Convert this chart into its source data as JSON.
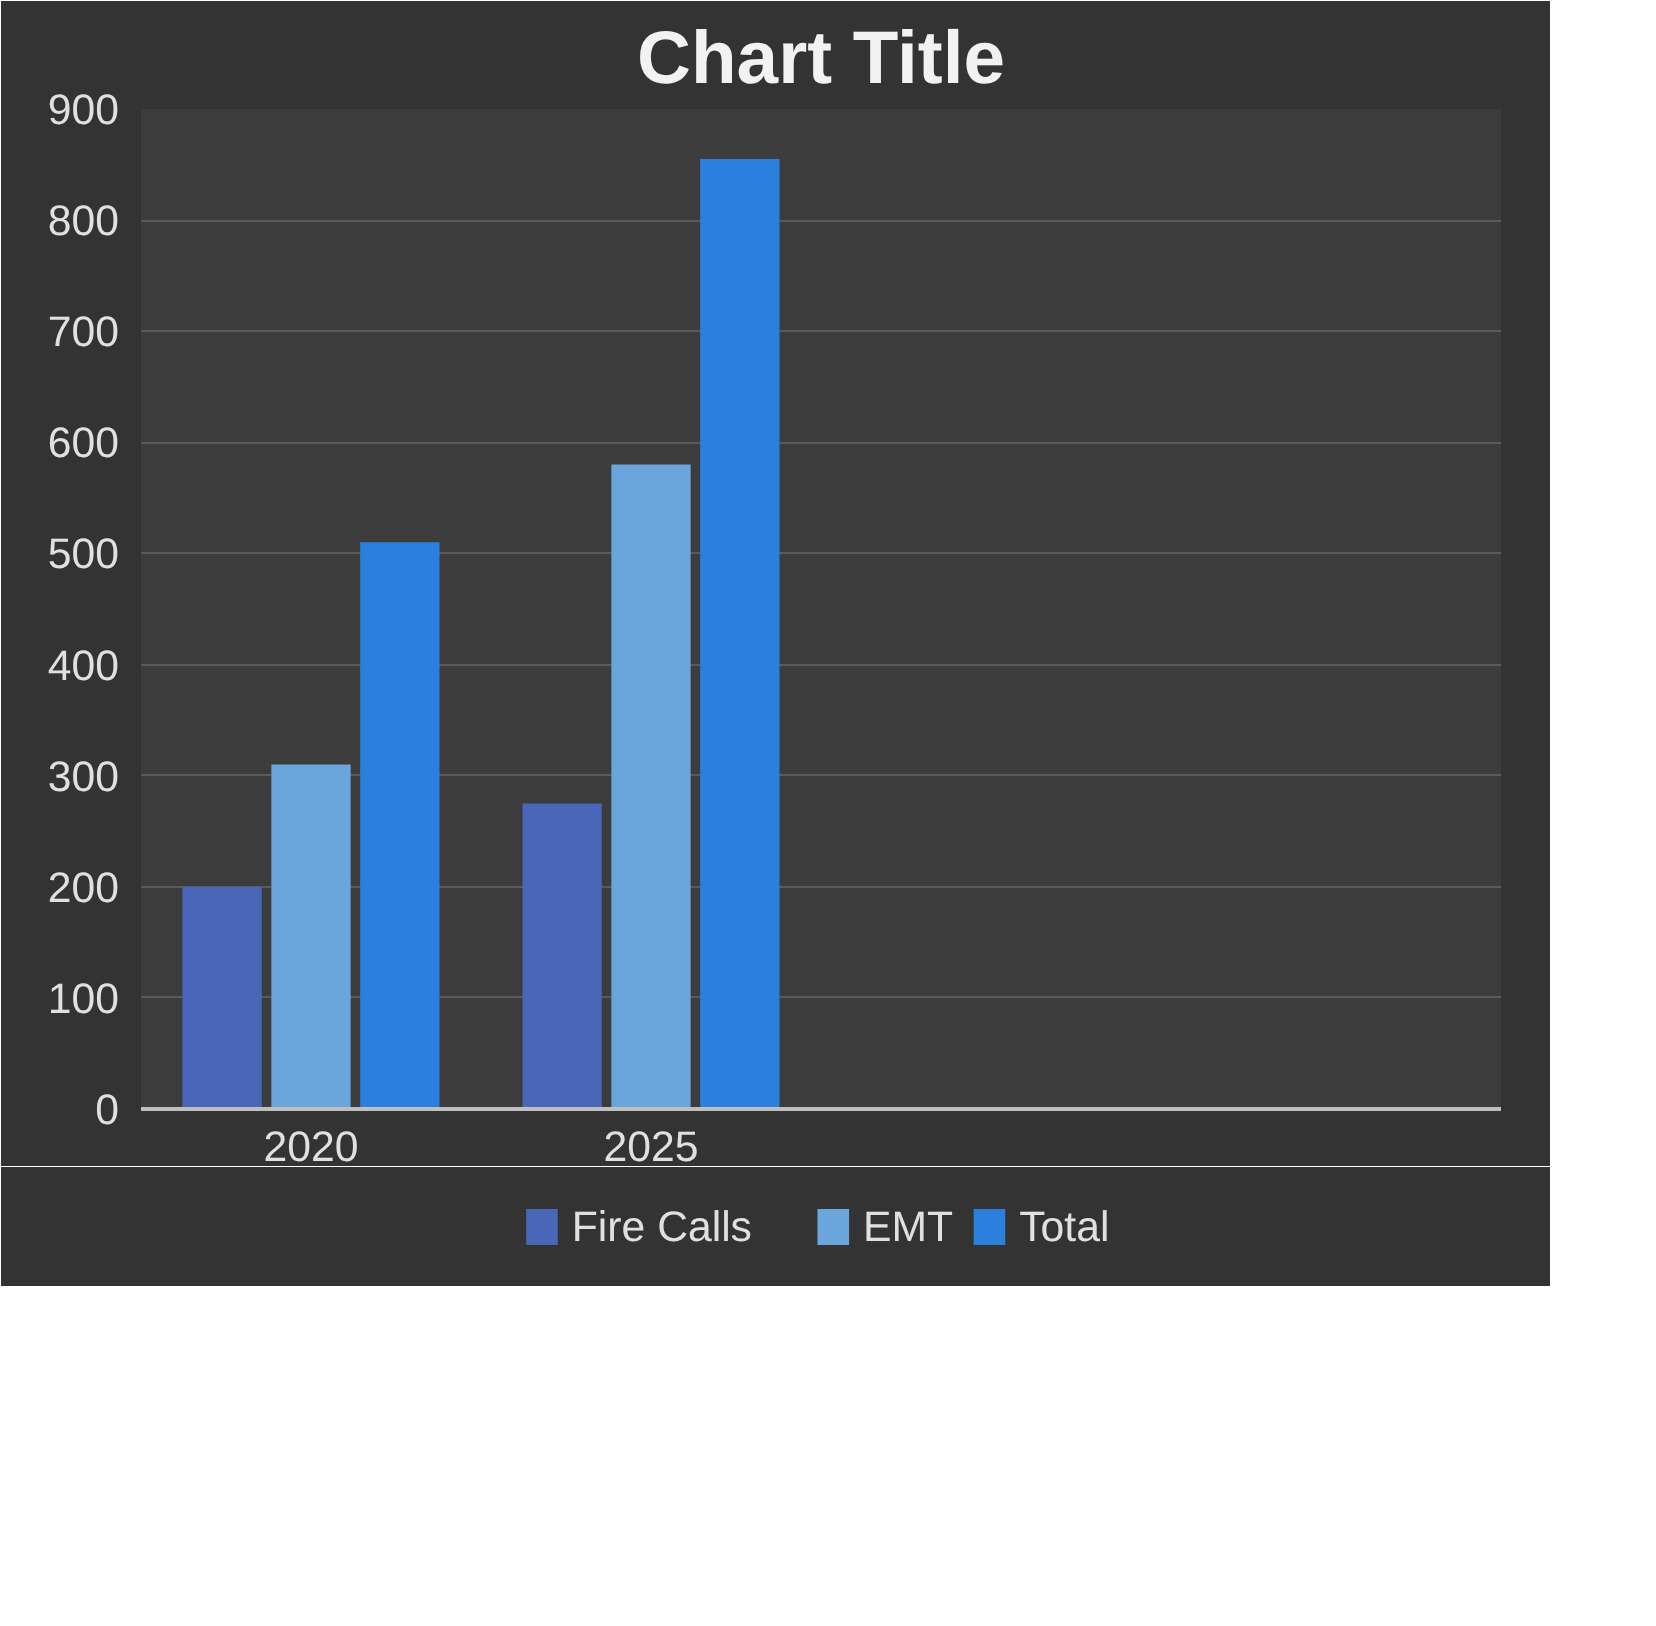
{
  "chart_data": {
    "type": "bar",
    "title": "Chart Title",
    "categories": [
      "2020",
      "2025",
      null,
      null
    ],
    "series": [
      {
        "name": "Fire Calls",
        "color": "#4a66b8",
        "values": [
          200,
          275,
          null,
          null
        ]
      },
      {
        "name": "EMT",
        "color": "#6aa6dc",
        "values": [
          310,
          580,
          null,
          null
        ]
      },
      {
        "name": "Total",
        "color": "#2a80dc",
        "values": [
          510,
          855,
          null,
          null
        ]
      }
    ],
    "ylim": [
      0,
      900
    ],
    "yticks": [
      0,
      100,
      200,
      300,
      400,
      500,
      600,
      700,
      800,
      900
    ],
    "grid": "y",
    "legend": "bottom"
  }
}
